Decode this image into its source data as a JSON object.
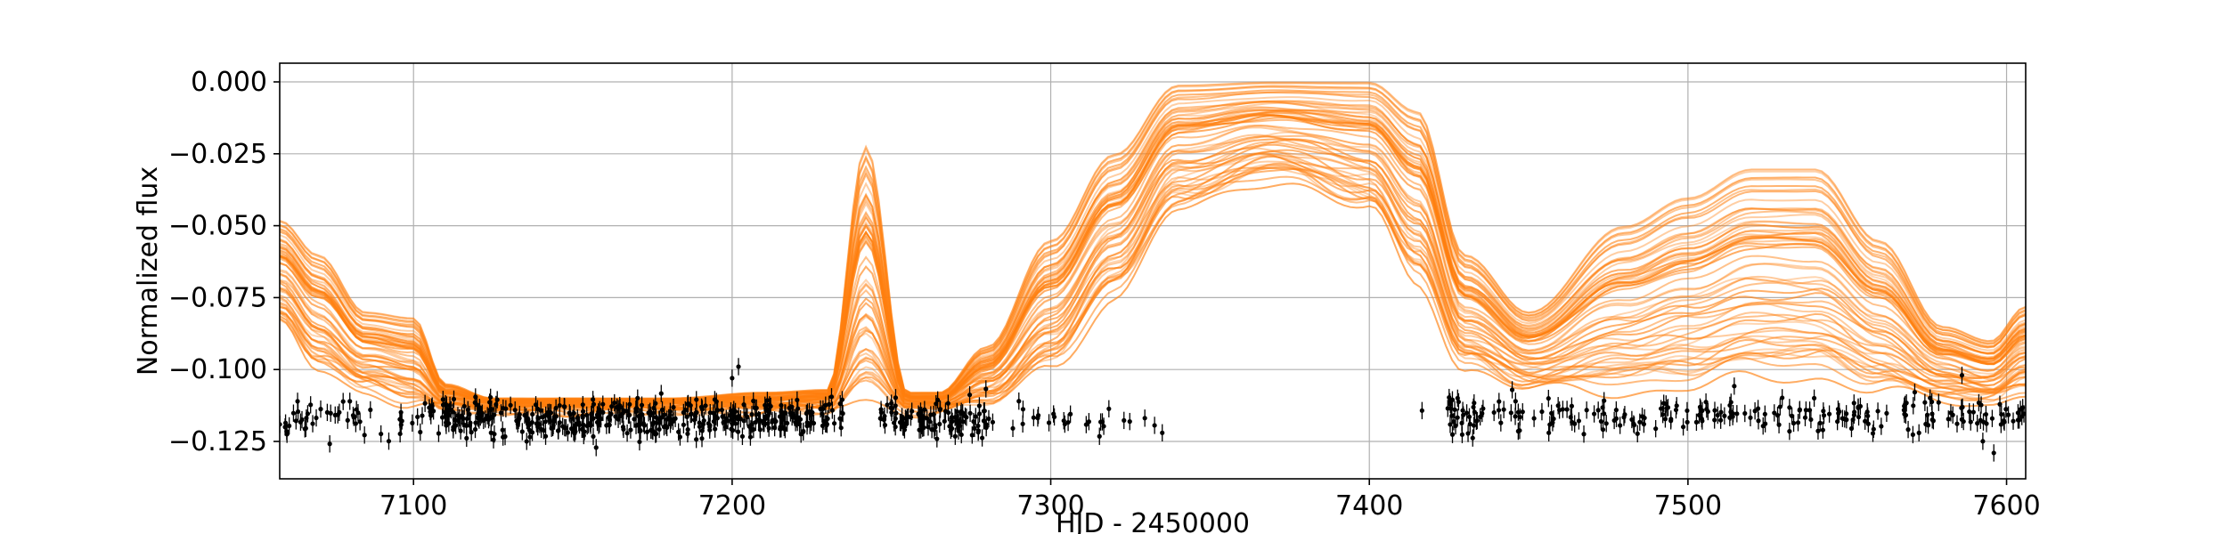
{
  "chart_data": {
    "type": "line",
    "title": "",
    "xlabel": "HJD - 2450000",
    "ylabel": "Normalized flux",
    "xlim": [
      7058,
      7606
    ],
    "ylim": [
      -0.138,
      0.0065
    ],
    "xticks": [
      7100,
      7200,
      7300,
      7400,
      7500,
      7600
    ],
    "xtick_labels": [
      "7100",
      "7200",
      "7300",
      "7400",
      "7500",
      "7600"
    ],
    "yticks": [
      0.0,
      -0.025,
      -0.05,
      -0.075,
      -0.1,
      -0.125
    ],
    "ytick_labels": [
      "0.000",
      "−0.025",
      "−0.050",
      "−0.075",
      "−0.100",
      "−0.125"
    ],
    "grid": true,
    "legend": "none",
    "model_series": {
      "style": "many semi-transparent model light curves (posterior samples)",
      "color": "#ff7f0e",
      "sample_count": 60,
      "representative_curve": {
        "x": [
          7058,
          7070,
          7085,
          7100,
          7110,
          7125,
          7150,
          7180,
          7210,
          7230,
          7242,
          7255,
          7265,
          7280,
          7300,
          7320,
          7340,
          7370,
          7400,
          7415,
          7430,
          7450,
          7480,
          7500,
          7520,
          7540,
          7560,
          7580,
          7595,
          7606
        ],
        "y": [
          -0.07,
          -0.085,
          -0.097,
          -0.1,
          -0.109,
          -0.112,
          -0.113,
          -0.113,
          -0.113,
          -0.111,
          -0.075,
          -0.11,
          -0.112,
          -0.1,
          -0.07,
          -0.042,
          -0.015,
          0.0,
          -0.005,
          -0.03,
          -0.075,
          -0.1,
          -0.095,
          -0.092,
          -0.078,
          -0.088,
          -0.085,
          -0.1,
          -0.1,
          -0.085
        ]
      },
      "envelope": {
        "x": [
          7058,
          7070,
          7085,
          7100,
          7110,
          7125,
          7150,
          7180,
          7210,
          7230,
          7242,
          7255,
          7265,
          7280,
          7300,
          7320,
          7340,
          7370,
          7400,
          7415,
          7430,
          7450,
          7480,
          7500,
          7520,
          7540,
          7560,
          7580,
          7595,
          7606
        ],
        "y_upper": [
          -0.048,
          -0.06,
          -0.08,
          -0.082,
          -0.105,
          -0.11,
          -0.11,
          -0.11,
          -0.108,
          -0.107,
          -0.022,
          -0.108,
          -0.108,
          -0.092,
          -0.055,
          -0.025,
          -0.001,
          0.0,
          0.0,
          -0.01,
          -0.06,
          -0.08,
          -0.05,
          -0.04,
          -0.03,
          -0.03,
          -0.055,
          -0.085,
          -0.09,
          -0.078
        ],
        "y_lower": [
          -0.085,
          -0.1,
          -0.108,
          -0.112,
          -0.114,
          -0.114,
          -0.114,
          -0.114,
          -0.114,
          -0.114,
          -0.112,
          -0.114,
          -0.114,
          -0.112,
          -0.1,
          -0.075,
          -0.045,
          -0.034,
          -0.045,
          -0.07,
          -0.1,
          -0.107,
          -0.108,
          -0.107,
          -0.103,
          -0.103,
          -0.108,
          -0.111,
          -0.112,
          -0.108
        ]
      }
    },
    "observations": {
      "style": "black points with vertical error bars",
      "color": "#000000",
      "typical_error": 0.003,
      "segments": [
        {
          "x_range": [
            7058,
            7110
          ],
          "flux_mean": -0.1165,
          "flux_scatter": 0.0045,
          "n": 60
        },
        {
          "x_range": [
            7110,
            7230
          ],
          "flux_mean": -0.117,
          "flux_scatter": 0.0045,
          "n": 420
        },
        {
          "x_range": [
            7230,
            7236
          ],
          "flux_mean": -0.115,
          "flux_scatter": 0.004,
          "n": 10
        },
        {
          "x_range": [
            7246,
            7282
          ],
          "flux_mean": -0.117,
          "flux_scatter": 0.0045,
          "n": 110
        },
        {
          "x_range": [
            7288,
            7335
          ],
          "flux_mean": -0.118,
          "flux_scatter": 0.004,
          "n": 24
        },
        {
          "x_range": [
            7415,
            7417
          ],
          "flux_mean": -0.114,
          "flux_scatter": 0.001,
          "n": 1
        },
        {
          "x_range": [
            7422,
            7606
          ],
          "flux_mean": -0.116,
          "flux_scatter": 0.0045,
          "n": 240
        }
      ],
      "notable_points": [
        {
          "x": 7202,
          "y": -0.099
        },
        {
          "x": 7200,
          "y": -0.103
        },
        {
          "x": 7290,
          "y": -0.111
        },
        {
          "x": 7586,
          "y": -0.102
        },
        {
          "x": 7596,
          "y": -0.129
        },
        {
          "x": 7335,
          "y": -0.122
        }
      ]
    }
  }
}
